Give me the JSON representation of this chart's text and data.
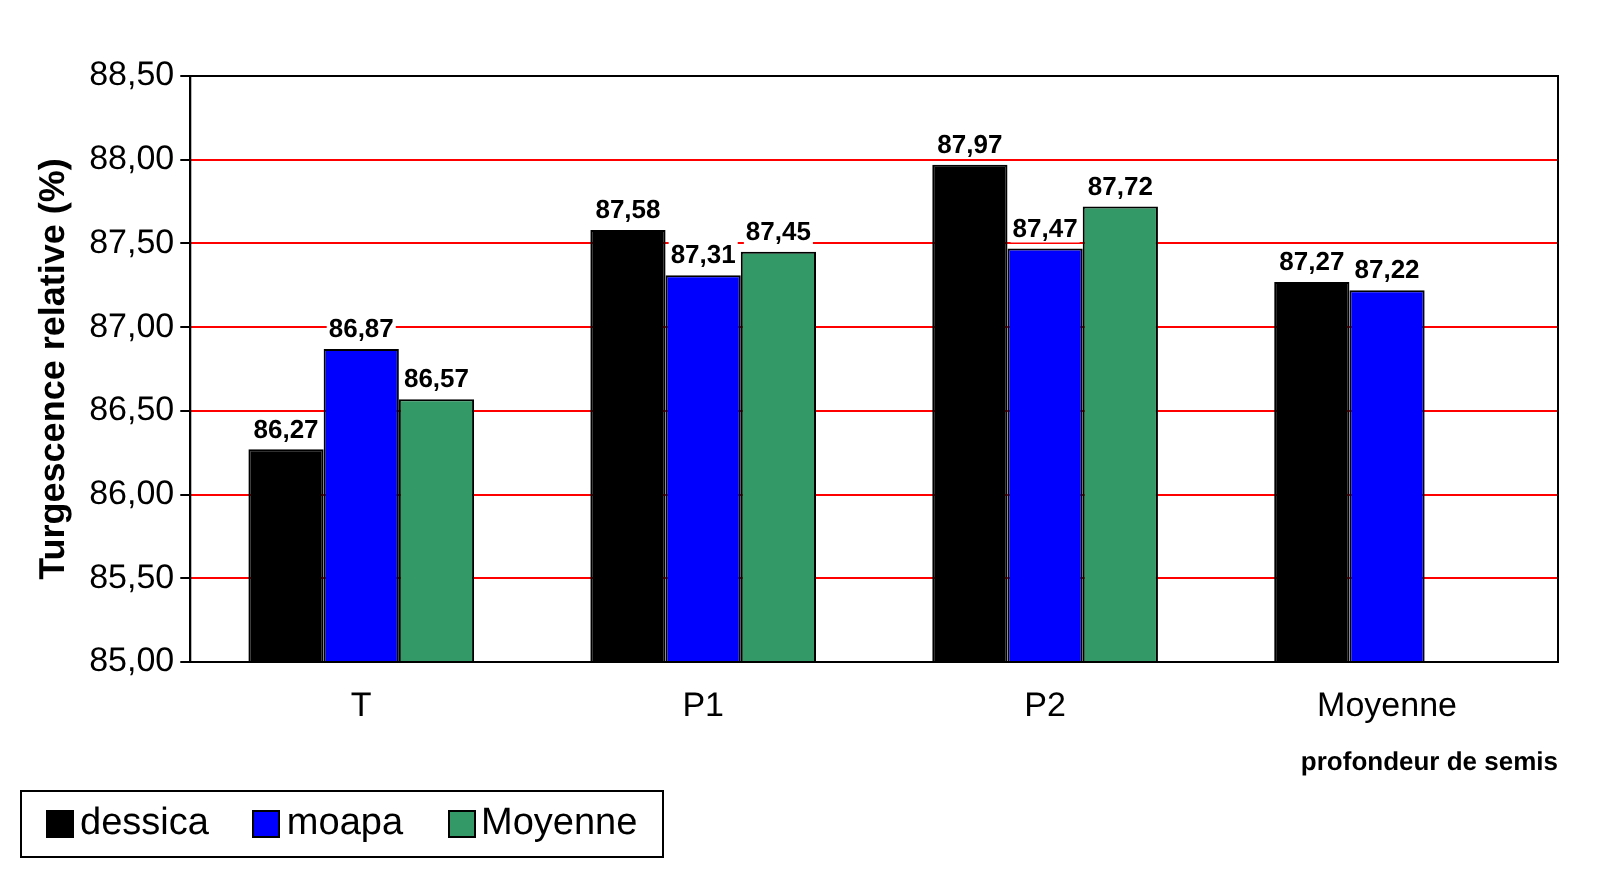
{
  "chart_data": {
    "type": "bar",
    "xlabel": "profondeur de semis",
    "ylabel": "Turgescence relative (%)",
    "categories": [
      "T",
      "P1",
      "P2",
      "Moyenne"
    ],
    "series": [
      {
        "name": "dessica",
        "color": "#000000",
        "values": [
          86.27,
          87.58,
          87.97,
          87.27
        ],
        "value_labels": [
          "86,27",
          "87,58",
          "87,97",
          "87,27"
        ]
      },
      {
        "name": "moapa",
        "color": "#0000ff",
        "values": [
          86.87,
          87.31,
          87.47,
          87.22
        ],
        "value_labels": [
          "86,87",
          "87,31",
          "87,47",
          "87,22"
        ]
      },
      {
        "name": "Moyenne",
        "color": "#339966",
        "values": [
          86.57,
          87.45,
          87.72,
          null
        ],
        "value_labels": [
          "86,57",
          "87,45",
          "87,72",
          null
        ]
      }
    ],
    "ylim": [
      85,
      88.5
    ],
    "yticks": [
      {
        "value": 85,
        "label": "85,00"
      },
      {
        "value": 85.5,
        "label": "85,50"
      },
      {
        "value": 86,
        "label": "86,00"
      },
      {
        "value": 86.5,
        "label": "86,50"
      },
      {
        "value": 87,
        "label": "87,00"
      },
      {
        "value": 87.5,
        "label": "87,50"
      },
      {
        "value": 88,
        "label": "88,00"
      },
      {
        "value": 88.5,
        "label": "88,50"
      }
    ],
    "grid": "y",
    "legend": "bottom left"
  }
}
